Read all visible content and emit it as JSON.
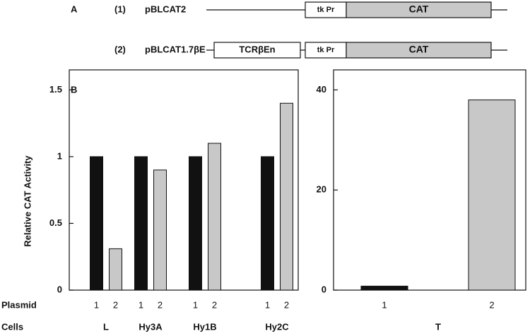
{
  "panel_labels": {
    "a": "A",
    "b": "B"
  },
  "constructs": [
    {
      "number": "(1)",
      "name": "pBLCAT2",
      "elements": [
        "tk Pr",
        "CAT"
      ]
    },
    {
      "number": "(2)",
      "name": "pBLCAT1.7βE",
      "elements": [
        "TCRβEn",
        "tk Pr",
        "CAT"
      ]
    }
  ],
  "chart_data": [
    {
      "type": "bar",
      "y_label": "Relative CAT Activity",
      "series_label": "Plasmid",
      "category_label": "Cells",
      "categories": [
        "L",
        "Hy3A",
        "Hy1B",
        "Hy2C"
      ],
      "series": [
        {
          "name": "1",
          "color": "#111111",
          "values": [
            1,
            1,
            1,
            1
          ]
        },
        {
          "name": "2",
          "color": "#c8c8c8",
          "values": [
            0.31,
            0.9,
            1.1,
            1.4
          ]
        }
      ],
      "ylim": [
        0,
        1.65
      ],
      "yticks": [
        0,
        0.5,
        1,
        1.5
      ]
    },
    {
      "type": "bar",
      "categories": [
        "T"
      ],
      "series": [
        {
          "name": "1",
          "color": "#111111",
          "values": [
            0.8
          ]
        },
        {
          "name": "2",
          "color": "#c8c8c8",
          "values": [
            38
          ]
        }
      ],
      "ylim": [
        0,
        44
      ],
      "yticks": [
        0,
        20,
        40
      ]
    }
  ]
}
